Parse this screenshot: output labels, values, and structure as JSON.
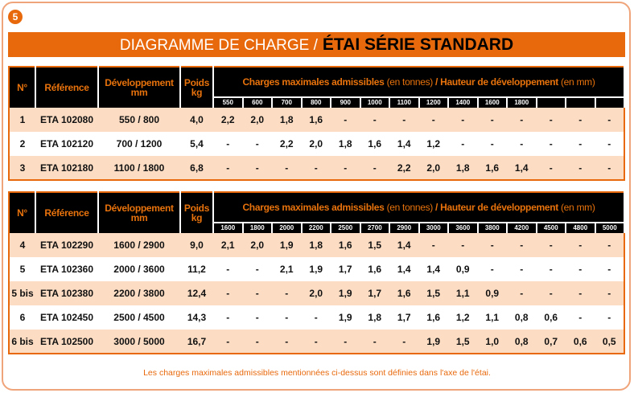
{
  "badge": "5",
  "title": {
    "part1": "DIAGRAMME DE CHARGE /",
    "part2": "ÉTAI SÉRIE STANDARD"
  },
  "headers": {
    "no": "N°",
    "ref": "Référence",
    "dev": "Développement",
    "dev_unit": "mm",
    "weight": "Poids",
    "weight_unit": "kg",
    "charges_bold": "Charges maximales admissibles",
    "charges_unit": "(en tonnes)",
    "height_bold": "/ Hauteur de développement",
    "height_unit": "(en mm)"
  },
  "table1": {
    "heights": [
      "550",
      "600",
      "700",
      "800",
      "900",
      "1000",
      "1100",
      "1200",
      "1400",
      "1600",
      "1800",
      "",
      "",
      ""
    ],
    "rows": [
      {
        "no": "1",
        "ref": "ETA 102080",
        "dev": "550 / 800",
        "weight": "4,0",
        "values": [
          "2,2",
          "2,0",
          "1,8",
          "1,6",
          "-",
          "-",
          "-",
          "-",
          "-",
          "-",
          "-",
          "-",
          "-",
          "-"
        ]
      },
      {
        "no": "2",
        "ref": "ETA 102120",
        "dev": "700 / 1200",
        "weight": "5,4",
        "values": [
          "-",
          "-",
          "2,2",
          "2,0",
          "1,8",
          "1,6",
          "1,4",
          "1,2",
          "-",
          "-",
          "-",
          "-",
          "-",
          "-"
        ]
      },
      {
        "no": "3",
        "ref": "ETA 102180",
        "dev": "1100 / 1800",
        "weight": "6,8",
        "values": [
          "-",
          "-",
          "-",
          "-",
          "-",
          "-",
          "2,2",
          "2,0",
          "1,8",
          "1,6",
          "1,4",
          "-",
          "-",
          "-"
        ]
      }
    ]
  },
  "table2": {
    "heights": [
      "1600",
      "1800",
      "2000",
      "2200",
      "2500",
      "2700",
      "2900",
      "3000",
      "3600",
      "3800",
      "4200",
      "4500",
      "4800",
      "5000"
    ],
    "rows": [
      {
        "no": "4",
        "ref": "ETA 102290",
        "dev": "1600 / 2900",
        "weight": "9,0",
        "values": [
          "2,1",
          "2,0",
          "1,9",
          "1,8",
          "1,6",
          "1,5",
          "1,4",
          "-",
          "-",
          "-",
          "-",
          "-",
          "-",
          "-"
        ]
      },
      {
        "no": "5",
        "ref": "ETA 102360",
        "dev": "2000 / 3600",
        "weight": "11,2",
        "values": [
          "-",
          "-",
          "2,1",
          "1,9",
          "1,7",
          "1,6",
          "1,4",
          "1,4",
          "0,9",
          "-",
          "-",
          "-",
          "-",
          "-"
        ]
      },
      {
        "no": "5 bis",
        "ref": "ETA 102380",
        "dev": "2200 / 3800",
        "weight": "12,4",
        "values": [
          "-",
          "-",
          "-",
          "2,0",
          "1,9",
          "1,7",
          "1,6",
          "1,5",
          "1,1",
          "0,9",
          "-",
          "-",
          "-",
          "-"
        ]
      },
      {
        "no": "6",
        "ref": "ETA 102450",
        "dev": "2500 / 4500",
        "weight": "14,3",
        "values": [
          "-",
          "-",
          "-",
          "-",
          "1,9",
          "1,8",
          "1,7",
          "1,6",
          "1,2",
          "1,1",
          "0,8",
          "0,6",
          "-",
          "-"
        ]
      },
      {
        "no": "6 bis",
        "ref": "ETA 102500",
        "dev": "3000 / 5000",
        "weight": "16,7",
        "values": [
          "-",
          "-",
          "-",
          "-",
          "-",
          "-",
          "-",
          "1,9",
          "1,5",
          "1,0",
          "0,8",
          "0,7",
          "0,6",
          "0,5"
        ]
      }
    ]
  },
  "footnote": "Les charges maximales admissibles mentionnées ci-dessus sont définies dans l'axe de l'étai."
}
